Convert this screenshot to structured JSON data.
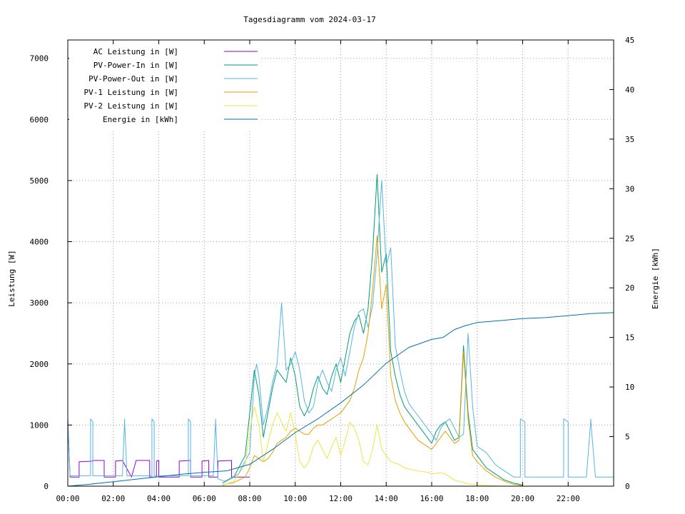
{
  "chart_data": {
    "type": "line",
    "title": "Tagesdiagramm vom 2024-03-17",
    "ylabel": "Leistung [W]",
    "y2label": "Energie [kWh]",
    "xlabel": "",
    "xlim": [
      0,
      24
    ],
    "ylim": [
      0,
      7300
    ],
    "y2lim": [
      0,
      45
    ],
    "grid": true,
    "legend_position": "top-left",
    "x_ticks": [
      {
        "value": 0,
        "label": "00:00"
      },
      {
        "value": 2,
        "label": "02:00"
      },
      {
        "value": 4,
        "label": "04:00"
      },
      {
        "value": 6,
        "label": "06:00"
      },
      {
        "value": 8,
        "label": "08:00"
      },
      {
        "value": 10,
        "label": "10:00"
      },
      {
        "value": 12,
        "label": "12:00"
      },
      {
        "value": 14,
        "label": "14:00"
      },
      {
        "value": 16,
        "label": "16:00"
      },
      {
        "value": 18,
        "label": "18:00"
      },
      {
        "value": 20,
        "label": "20:00"
      },
      {
        "value": 22,
        "label": "22:00"
      }
    ],
    "y_ticks": [
      {
        "value": 0,
        "label": "0"
      },
      {
        "value": 1000,
        "label": "1000"
      },
      {
        "value": 2000,
        "label": "2000"
      },
      {
        "value": 3000,
        "label": "3000"
      },
      {
        "value": 4000,
        "label": "4000"
      },
      {
        "value": 5000,
        "label": "5000"
      },
      {
        "value": 6000,
        "label": "6000"
      },
      {
        "value": 7000,
        "label": "7000"
      }
    ],
    "y2_ticks": [
      {
        "value": 0,
        "label": "0"
      },
      {
        "value": 5,
        "label": "5"
      },
      {
        "value": 10,
        "label": "10"
      },
      {
        "value": 15,
        "label": "15"
      },
      {
        "value": 20,
        "label": "20"
      },
      {
        "value": 25,
        "label": "25"
      },
      {
        "value": 30,
        "label": "30"
      },
      {
        "value": 35,
        "label": "35"
      },
      {
        "value": 40,
        "label": "40"
      },
      {
        "value": 45,
        "label": "45"
      }
    ],
    "series": [
      {
        "name": "AC Leistung in [W]",
        "axis": "left",
        "color": "#9400d3",
        "x": [
          0.0,
          0.1,
          0.5,
          0.5,
          1.1,
          1.1,
          1.6,
          1.6,
          2.1,
          2.1,
          2.4,
          2.4,
          2.8,
          2.8,
          3.0,
          3.0,
          3.6,
          3.6,
          3.9,
          3.9,
          4.0,
          4.0,
          4.9,
          4.9,
          5.4,
          5.4,
          5.9,
          5.9,
          6.2,
          6.2,
          6.6,
          6.6,
          7.2,
          7.2,
          8.0
        ],
        "y": [
          1100,
          150,
          150,
          400,
          410,
          420,
          420,
          150,
          150,
          410,
          420,
          420,
          150,
          150,
          410,
          420,
          420,
          150,
          150,
          410,
          420,
          150,
          150,
          410,
          420,
          150,
          150,
          410,
          420,
          150,
          150,
          410,
          420,
          150,
          150
        ]
      },
      {
        "name": "PV-Power-In in [W]",
        "axis": "left",
        "color": "#009e73",
        "x": [
          6.8,
          7.3,
          7.8,
          8.0,
          8.2,
          8.4,
          8.6,
          8.8,
          9.0,
          9.2,
          9.4,
          9.6,
          9.8,
          10.0,
          10.2,
          10.4,
          10.6,
          10.8,
          11.0,
          11.2,
          11.4,
          11.6,
          11.8,
          12.0,
          12.2,
          12.4,
          12.6,
          12.8,
          13.0,
          13.2,
          13.4,
          13.6,
          13.8,
          14.0,
          14.2,
          14.4,
          14.6,
          14.8,
          15.0,
          15.2,
          15.4,
          15.6,
          15.8,
          16.0,
          16.2,
          16.4,
          16.6,
          16.8,
          17.0,
          17.2,
          17.4,
          17.6,
          17.8,
          18.0,
          18.4,
          18.8,
          19.2,
          19.6,
          20.0
        ],
        "y": [
          50,
          150,
          500,
          1200,
          1900,
          1500,
          800,
          1200,
          1600,
          1900,
          1800,
          1700,
          2100,
          1800,
          1300,
          1150,
          1300,
          1600,
          1800,
          1600,
          1500,
          1800,
          2000,
          1700,
          2100,
          2500,
          2700,
          2800,
          2500,
          2900,
          3800,
          5100,
          3500,
          3800,
          2200,
          1800,
          1500,
          1300,
          1200,
          1100,
          1000,
          900,
          800,
          700,
          900,
          1000,
          1050,
          900,
          750,
          800,
          2300,
          1200,
          600,
          500,
          300,
          200,
          100,
          50,
          20
        ]
      },
      {
        "name": "PV-Power-Out in [W]",
        "axis": "left",
        "color": "#56b4e9",
        "x": [
          0.0,
          0.1,
          0.5,
          1.0,
          1.0,
          1.1,
          1.1,
          1.6,
          2.0,
          2.4,
          2.5,
          2.5,
          2.6,
          2.6,
          3.0,
          3.7,
          3.7,
          3.8,
          3.8,
          4.0,
          5.3,
          5.3,
          5.4,
          5.4,
          6.4,
          6.5,
          6.5,
          6.6,
          6.6,
          6.9,
          7.5,
          8.0,
          8.2,
          8.3,
          8.4,
          8.6,
          8.8,
          9.0,
          9.2,
          9.4,
          9.6,
          9.8,
          10.0,
          10.2,
          10.4,
          10.6,
          10.8,
          11.0,
          11.2,
          11.4,
          11.6,
          11.8,
          12.0,
          12.2,
          12.4,
          12.6,
          12.8,
          13.0,
          13.2,
          13.4,
          13.6,
          13.8,
          14.0,
          14.2,
          14.4,
          14.6,
          14.8,
          15.0,
          15.2,
          15.4,
          15.6,
          15.8,
          16.0,
          16.2,
          16.4,
          16.6,
          16.8,
          17.0,
          17.2,
          17.4,
          17.6,
          17.8,
          18.0,
          18.4,
          18.8,
          19.2,
          19.6,
          19.9,
          19.9,
          20.1,
          20.1,
          21.0,
          21.8,
          21.8,
          22.0,
          22.0,
          22.8,
          23.0,
          23.0,
          23.2,
          23.2,
          24.0
        ],
        "y": [
          1100,
          170,
          170,
          170,
          1100,
          1050,
          170,
          170,
          170,
          170,
          1100,
          1050,
          170,
          170,
          170,
          170,
          1100,
          1050,
          170,
          170,
          170,
          1100,
          1050,
          170,
          170,
          1100,
          1050,
          170,
          120,
          80,
          200,
          550,
          1800,
          2000,
          1800,
          1000,
          1300,
          1700,
          2000,
          3000,
          1900,
          2000,
          2200,
          1900,
          1400,
          1200,
          1300,
          1700,
          1900,
          1700,
          1550,
          1900,
          2100,
          1800,
          2200,
          2600,
          2850,
          2900,
          2600,
          2950,
          3800,
          5000,
          3600,
          3900,
          2300,
          1900,
          1550,
          1350,
          1250,
          1150,
          1050,
          950,
          850,
          750,
          950,
          1050,
          1100,
          950,
          800,
          850,
          2500,
          1300,
          650,
          550,
          350,
          250,
          150,
          150,
          1100,
          1050,
          150,
          150,
          150,
          1100,
          1050,
          150,
          150,
          1100,
          1050,
          150,
          150,
          150
        ]
      },
      {
        "name": "PV-1 Leistung in [W]",
        "axis": "left",
        "color": "#e69f00",
        "x": [
          6.8,
          7.3,
          7.8,
          8.0,
          8.2,
          8.4,
          8.6,
          8.8,
          9.0,
          9.2,
          9.4,
          9.6,
          9.8,
          10.0,
          10.2,
          10.4,
          10.6,
          10.8,
          11.0,
          11.2,
          11.4,
          11.6,
          11.8,
          12.0,
          12.2,
          12.4,
          12.6,
          12.8,
          13.0,
          13.2,
          13.4,
          13.6,
          13.8,
          14.0,
          14.2,
          14.4,
          14.6,
          14.8,
          15.0,
          15.2,
          15.4,
          15.6,
          15.8,
          16.0,
          16.2,
          16.4,
          16.6,
          16.8,
          17.0,
          17.2,
          17.4,
          17.6,
          17.8,
          18.0,
          18.4,
          18.8,
          19.2,
          19.6,
          20.0
        ],
        "y": [
          20,
          60,
          150,
          300,
          500,
          450,
          400,
          450,
          550,
          700,
          750,
          800,
          900,
          950,
          900,
          850,
          850,
          950,
          1000,
          1000,
          1050,
          1100,
          1150,
          1200,
          1300,
          1400,
          1600,
          1900,
          2100,
          2500,
          3200,
          4100,
          2900,
          3300,
          1800,
          1400,
          1200,
          1050,
          950,
          850,
          750,
          700,
          650,
          600,
          700,
          800,
          900,
          800,
          700,
          750,
          2200,
          1100,
          500,
          400,
          250,
          150,
          80,
          30,
          10
        ]
      },
      {
        "name": "PV-2 Leistung in [W]",
        "axis": "left",
        "color": "#f0e442",
        "x": [
          6.8,
          7.3,
          7.8,
          8.0,
          8.2,
          8.4,
          8.6,
          8.8,
          9.0,
          9.2,
          9.4,
          9.6,
          9.8,
          10.0,
          10.2,
          10.4,
          10.6,
          10.8,
          11.0,
          11.2,
          11.4,
          11.6,
          11.8,
          12.0,
          12.2,
          12.4,
          12.6,
          12.8,
          13.0,
          13.2,
          13.4,
          13.6,
          13.8,
          14.0,
          14.2,
          14.4,
          14.6,
          14.8,
          15.0,
          15.2,
          15.4,
          15.6,
          15.8,
          16.0,
          16.2,
          16.4,
          16.6,
          16.8,
          17.0,
          17.2,
          17.4,
          17.6,
          17.8,
          18.0,
          18.4,
          18.8,
          19.2,
          19.6,
          20.0
        ],
        "y": [
          10,
          80,
          350,
          900,
          1300,
          1000,
          400,
          700,
          1000,
          1200,
          1050,
          900,
          1200,
          850,
          400,
          300,
          400,
          650,
          750,
          600,
          450,
          650,
          800,
          500,
          750,
          1050,
          950,
          750,
          400,
          350,
          600,
          1000,
          600,
          500,
          400,
          380,
          350,
          300,
          280,
          260,
          250,
          240,
          230,
          200,
          210,
          220,
          200,
          150,
          100,
          80,
          60,
          40,
          30,
          20,
          10,
          5,
          0,
          0,
          0
        ]
      },
      {
        "name": "Energie in [kWh]",
        "axis": "right",
        "color": "#0072b2",
        "x": [
          0.0,
          1.0,
          2.0,
          3.0,
          4.0,
          5.0,
          6.0,
          7.0,
          8.0,
          9.0,
          10.0,
          11.0,
          12.0,
          13.0,
          14.0,
          15.0,
          16.0,
          16.5,
          17.0,
          17.5,
          18.0,
          19.0,
          20.0,
          21.0,
          22.0,
          23.0,
          24.0
        ],
        "y": [
          0.0,
          0.2,
          0.45,
          0.7,
          0.95,
          1.2,
          1.4,
          1.55,
          2.2,
          3.7,
          5.4,
          6.8,
          8.4,
          10.2,
          12.4,
          14.0,
          14.8,
          15.0,
          15.8,
          16.2,
          16.5,
          16.7,
          16.9,
          17.0,
          17.2,
          17.4,
          17.5
        ]
      }
    ]
  }
}
